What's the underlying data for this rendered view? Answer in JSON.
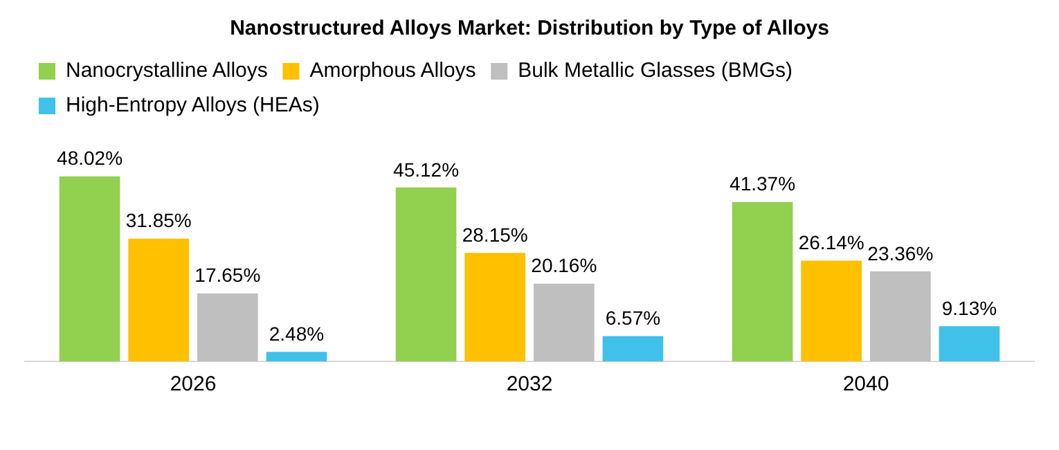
{
  "chart_data": {
    "type": "bar",
    "title": "Nanostructured Alloys Market: Distribution by Type of Alloys",
    "categories": [
      "2026",
      "2032",
      "2040"
    ],
    "series": [
      {
        "name": "Nanocrystalline Alloys",
        "color": "#92d050",
        "values": [
          48.02,
          45.12,
          41.37
        ],
        "value_labels": [
          "48.02%",
          "45.12%",
          "41.37%"
        ]
      },
      {
        "name": "Amorphous Alloys",
        "color": "#ffc000",
        "values": [
          31.85,
          28.15,
          26.14
        ],
        "value_labels": [
          "31.85%",
          "28.15%",
          "26.14%"
        ]
      },
      {
        "name": "Bulk Metallic Glasses (BMGs)",
        "color": "#bfbfbf",
        "values": [
          17.65,
          20.16,
          23.36
        ],
        "value_labels": [
          "17.65%",
          "20.16%",
          "23.36%"
        ]
      },
      {
        "name": "High-Entropy Alloys (HEAs)",
        "color": "#3fc1e9",
        "values": [
          2.48,
          6.57,
          9.13
        ],
        "value_labels": [
          "2.48%",
          "6.57%",
          "9.13%"
        ]
      }
    ],
    "legend": "top left",
    "grid": false
  }
}
